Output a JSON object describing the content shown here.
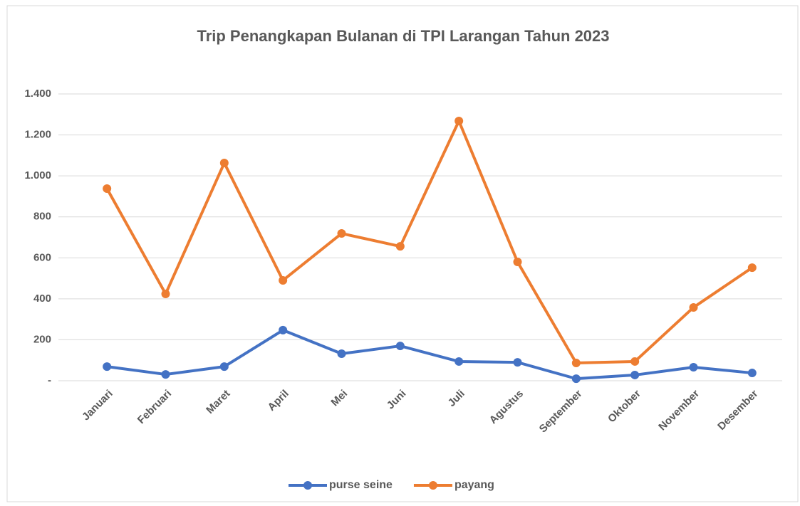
{
  "chart_data": {
    "type": "line",
    "title": "Trip Penangkapan Bulanan di TPI Larangan Tahun 2023",
    "categories": [
      "Januari",
      "Februari",
      "Maret",
      "April",
      "Mei",
      "Juni",
      "Juli",
      "Agustus",
      "September",
      "Oktober",
      "November",
      "Desember"
    ],
    "series": [
      {
        "name": "purse seine",
        "color": "#4472c4",
        "values": [
          69,
          31,
          69,
          247,
          132,
          170,
          94,
          90,
          10,
          28,
          66,
          38
        ]
      },
      {
        "name": "payang",
        "color": "#ed7d31",
        "values": [
          938,
          424,
          1063,
          490,
          719,
          656,
          1268,
          580,
          87,
          94,
          358,
          552
        ]
      }
    ],
    "ylim": [
      0,
      1400
    ],
    "yticks": [
      {
        "value": 0,
        "label": "-"
      },
      200,
      400,
      600,
      800,
      {
        "value": 1000,
        "label": "1.000"
      },
      {
        "value": 1200,
        "label": "1.200"
      },
      {
        "value": 1400,
        "label": "1.400"
      }
    ],
    "grid": true,
    "legend": "bottom"
  }
}
